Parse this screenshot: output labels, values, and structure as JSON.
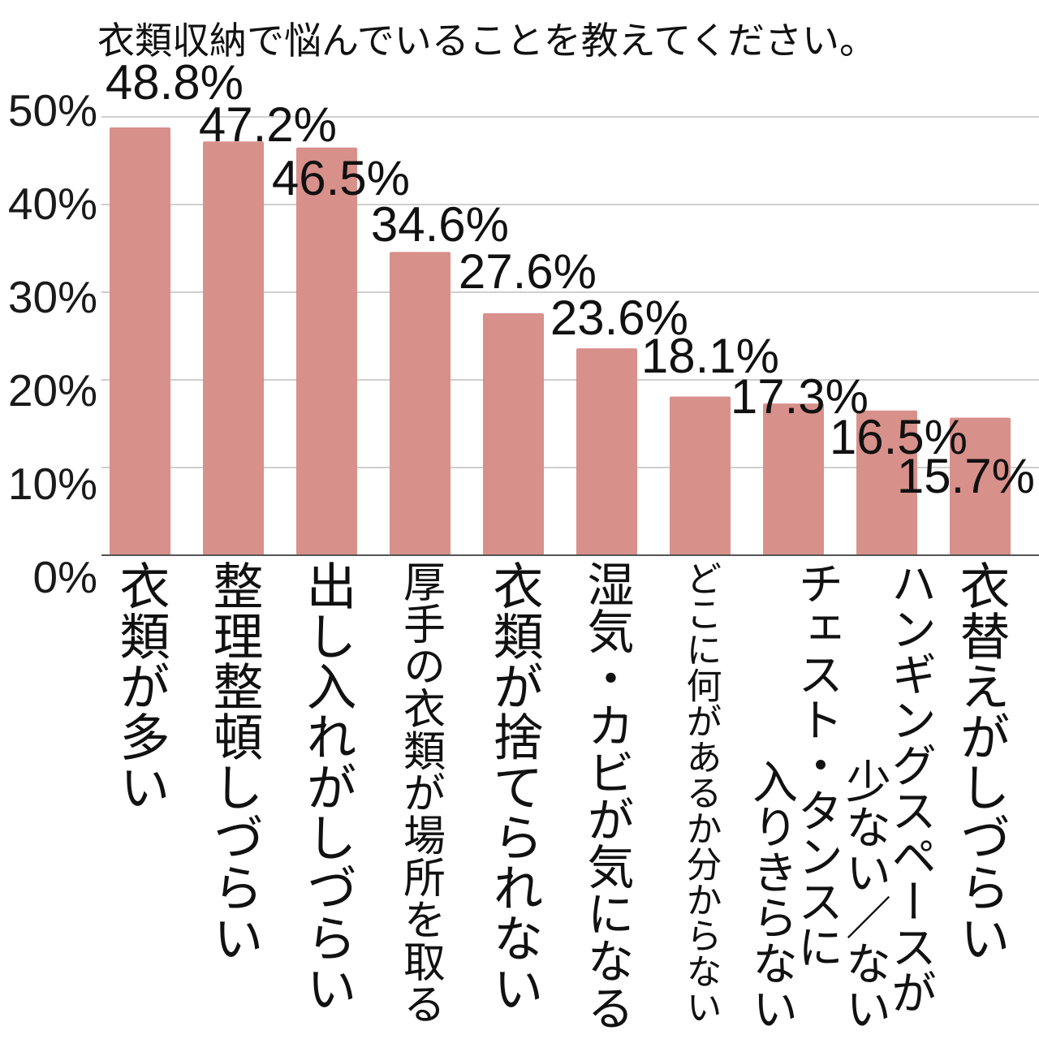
{
  "chart_data": {
    "type": "bar",
    "title": "衣類収納で悩んでいることを教えてください。",
    "categories": [
      "衣類が多い",
      "整理整頓しづらい",
      "出し入れがしづらい",
      "厚手の衣類が場所を取る",
      "衣類が捨てられない",
      "湿気・カビが気になる",
      "どこに何があるか分からない",
      "チェスト・タンスに入りきらない",
      "ハンギングスペースが少ない／ない",
      "衣替えがしづらい"
    ],
    "values": [
      48.8,
      47.2,
      46.5,
      34.6,
      27.6,
      23.6,
      18.1,
      17.3,
      16.5,
      15.7
    ],
    "data_labels": [
      "48.8%",
      "47.2%",
      "46.5%",
      "34.6%",
      "27.6%",
      "23.6%",
      "18.1%",
      "17.3%",
      "16.5%",
      "15.7%"
    ],
    "ylim": [
      0,
      50
    ],
    "yticks": [
      0,
      10,
      20,
      30,
      40,
      50
    ],
    "ytick_labels": [
      "0%",
      "10%",
      "20%",
      "30%",
      "40%",
      "50%"
    ],
    "grid": true,
    "bar_color": "#d8908b"
  }
}
